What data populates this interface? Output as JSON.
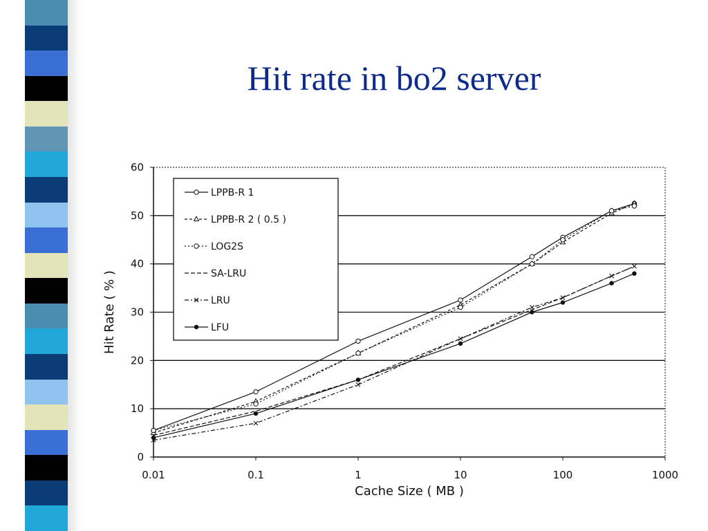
{
  "slide": {
    "title": "Hit rate in bo2 server",
    "strip_colors": [
      "#4a8db0",
      "#0a3d78",
      "#3a6fd6",
      "#000000",
      "#e4e3b9",
      "#5f95b5",
      "#20a8d8",
      "#0a3d78",
      "#8fc3f0",
      "#3a6fd6",
      "#e4e3b9",
      "#000000",
      "#4a8db0",
      "#20a8d8",
      "#0a3d78",
      "#8fc3f0",
      "#e4e3b9",
      "#3a6fd6",
      "#000000",
      "#0a3d78",
      "#20a8d8"
    ]
  },
  "chart_data": {
    "type": "line",
    "title": "",
    "xlabel": "Cache Size ( MB )",
    "ylabel": "Hit Rate ( % )",
    "xscale": "log",
    "xlim": [
      0.01,
      1000
    ],
    "ylim": [
      0,
      60
    ],
    "xticks": [
      0.01,
      0.1,
      1,
      10,
      100,
      1000
    ],
    "xtick_labels": [
      "0.01",
      "0.1",
      "1",
      "10",
      "100",
      "1000"
    ],
    "yticks": [
      0,
      10,
      20,
      30,
      40,
      50,
      60
    ],
    "ytick_labels": [
      "0",
      "10",
      "20",
      "30",
      "40",
      "50",
      "60"
    ],
    "grid": "horizontal",
    "legend_position": "top-left",
    "series": [
      {
        "name": "LPPB-R 1",
        "marker": "circle-open",
        "dash": "",
        "x": [
          0.01,
          0.1,
          1,
          10,
          50,
          100,
          300,
          500
        ],
        "y": [
          5.5,
          13.5,
          24,
          32.5,
          41.5,
          45.5,
          51,
          52.5
        ]
      },
      {
        "name": "LPPB-R 2 ( 0.5 )",
        "marker": "triangle",
        "dash": "4 3",
        "x": [
          0.01,
          0.1,
          1,
          10,
          50,
          100,
          300,
          500
        ],
        "y": [
          5,
          11.5,
          21.5,
          31.5,
          40,
          44.5,
          50.5,
          52.5
        ]
      },
      {
        "name": "LOG2S",
        "marker": "circle-open",
        "dash": "2 3",
        "x": [
          0.01,
          0.1,
          1,
          10,
          50,
          100,
          300,
          500
        ],
        "y": [
          5.5,
          11,
          21.5,
          31,
          40,
          45,
          51,
          52
        ]
      },
      {
        "name": "SA-LRU",
        "marker": "none",
        "dash": "6 3",
        "x": [
          0.01,
          0.1,
          1,
          10,
          50,
          100,
          300,
          500
        ],
        "y": [
          4.5,
          9.5,
          16,
          24.5,
          30.5,
          33,
          37.5,
          39.5
        ]
      },
      {
        "name": "LRU",
        "marker": "x",
        "dash": "6 3 2 3",
        "x": [
          0.01,
          0.1,
          1,
          10,
          50,
          100,
          300,
          500
        ],
        "y": [
          3.5,
          7,
          15,
          24.5,
          31,
          33,
          37.5,
          39.5
        ]
      },
      {
        "name": "LFU",
        "marker": "dot",
        "dash": "",
        "x": [
          0.01,
          0.1,
          1,
          10,
          50,
          100,
          300,
          500
        ],
        "y": [
          4,
          9,
          16,
          23.5,
          30,
          32,
          36,
          38
        ]
      }
    ]
  }
}
